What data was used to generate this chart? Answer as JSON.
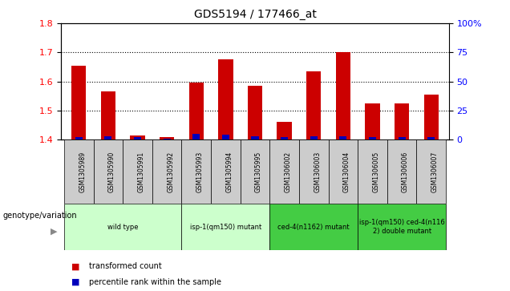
{
  "title": "GDS5194 / 177466_at",
  "samples": [
    "GSM1305989",
    "GSM1305990",
    "GSM1305991",
    "GSM1305992",
    "GSM1305993",
    "GSM1305994",
    "GSM1305995",
    "GSM1306002",
    "GSM1306003",
    "GSM1306004",
    "GSM1306005",
    "GSM1306006",
    "GSM1306007"
  ],
  "transformed_count": [
    1.655,
    1.565,
    1.415,
    1.41,
    1.595,
    1.675,
    1.585,
    1.46,
    1.635,
    1.7,
    1.525,
    1.525,
    1.555
  ],
  "percentile_rank": [
    2,
    3,
    2,
    1,
    5,
    4,
    3,
    2,
    3,
    3,
    2,
    2,
    2
  ],
  "ylim_left": [
    1.4,
    1.8
  ],
  "ylim_right": [
    0,
    100
  ],
  "yticks_left": [
    1.4,
    1.5,
    1.6,
    1.7,
    1.8
  ],
  "yticks_right": [
    0,
    25,
    50,
    75,
    100
  ],
  "bar_color_red": "#cc0000",
  "bar_color_blue": "#0000bb",
  "base_value": 1.4,
  "genotype_groups": [
    {
      "label": "wild type",
      "start": 0,
      "end": 3,
      "color": "#ccffcc"
    },
    {
      "label": "isp-1(qm150) mutant",
      "start": 4,
      "end": 6,
      "color": "#ccffcc"
    },
    {
      "label": "ced-4(n1162) mutant",
      "start": 7,
      "end": 9,
      "color": "#44cc44"
    },
    {
      "label": "isp-1(qm150) ced-4(n116\n2) double mutant",
      "start": 10,
      "end": 12,
      "color": "#44cc44"
    }
  ],
  "xlabel_genotype": "genotype/variation",
  "legend_red": "transformed count",
  "legend_blue": "percentile rank within the sample",
  "bg_color": "#ffffff",
  "sample_box_color": "#cccccc"
}
